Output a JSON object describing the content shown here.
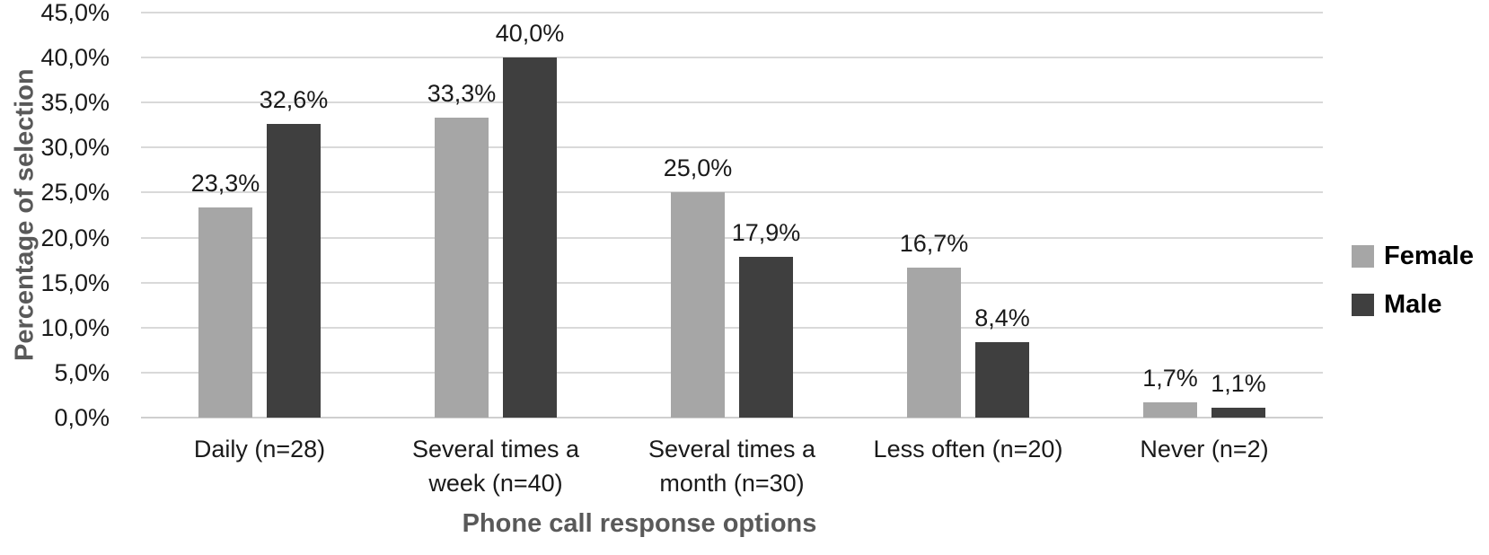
{
  "chart_data": {
    "type": "bar",
    "title": "",
    "xlabel": "Phone call response options",
    "ylabel": "Percentage of selection",
    "categories": [
      "Daily (n=28)",
      "Several times a week (n=40)",
      "Several times a month (n=30)",
      "Less often (n=20)",
      "Never (n=2)"
    ],
    "series": [
      {
        "name": "Female",
        "color": "#a6a6a6",
        "values": [
          23.3,
          33.3,
          25.0,
          16.7,
          1.7
        ],
        "labels": [
          "23,3%",
          "33,3%",
          "25,0%",
          "16,7%",
          "1,7%"
        ]
      },
      {
        "name": "Male",
        "color": "#3f3f3f",
        "values": [
          32.6,
          40.0,
          17.9,
          8.4,
          1.1
        ],
        "labels": [
          "32,6%",
          "40,0%",
          "17,9%",
          "8,4%",
          "1,1%"
        ]
      }
    ],
    "ylim": [
      0,
      45
    ],
    "ytick_step": 5,
    "ytick_labels": [
      "0,0%",
      "5,0%",
      "10,0%",
      "15,0%",
      "20,0%",
      "25,0%",
      "30,0%",
      "35,0%",
      "40,0%",
      "45,0%"
    ],
    "grid": true,
    "legend_position": "right",
    "decimal_separator": ","
  },
  "colors": {
    "gridline": "#d9d9d9",
    "axis_title": "#595959",
    "tick_text": "#1a1a1a",
    "legend_text": "#000000",
    "background": "#ffffff"
  }
}
